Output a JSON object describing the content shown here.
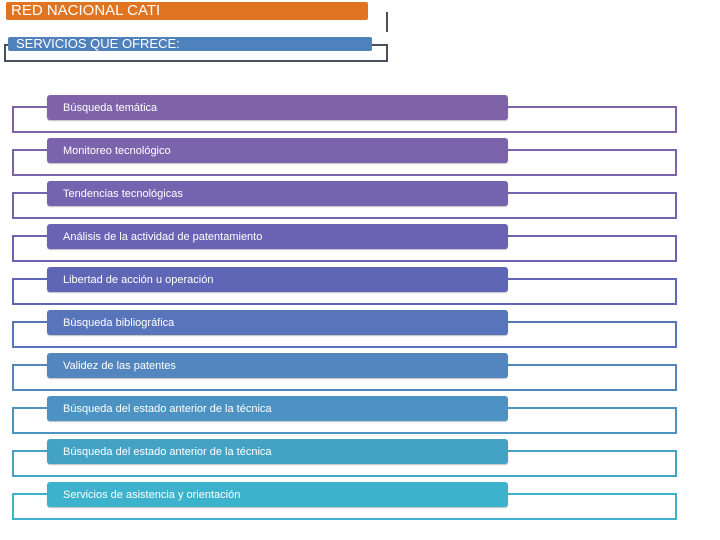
{
  "header": {
    "title": "RED NACIONAL CATI",
    "subtitle": "SERVICIOS QUE OFRECE:",
    "title_color": "#e07420",
    "subtitle_color": "#4f81bd"
  },
  "services": [
    {
      "label": "Búsqueda temática",
      "color": "#7f63a8"
    },
    {
      "label": "Monitoreo tecnológico",
      "color": "#7c64ad"
    },
    {
      "label": "Tendencias tecnológicas",
      "color": "#7464b0"
    },
    {
      "label": "Análisis de la actividad de patentamiento",
      "color": "#6a63b4"
    },
    {
      "label": "Libertad de acción u operación",
      "color": "#5f66b6"
    },
    {
      "label": "Búsqueda bibliográfica",
      "color": "#5875bb"
    },
    {
      "label": "Validez de las patentes",
      "color": "#5385bf"
    },
    {
      "label": "Búsqueda del estado anterior de la técnica",
      "color": "#4c93c3"
    },
    {
      "label": "Búsqueda del estado anterior de la técnica",
      "color": "#45a2c7"
    },
    {
      "label": "Servicios de asistencia y orientación",
      "color": "#3db2cc"
    }
  ]
}
